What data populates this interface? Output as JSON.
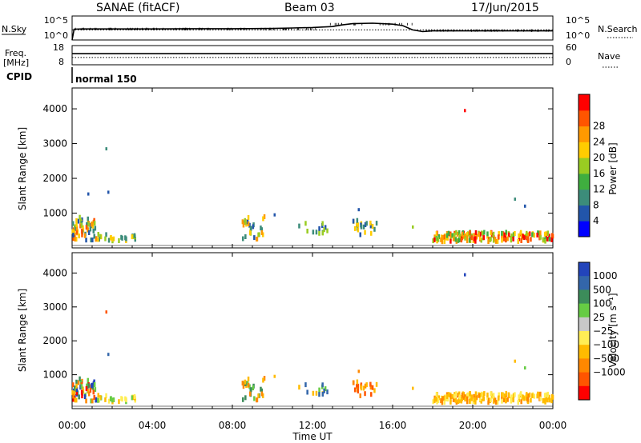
{
  "header": {
    "station": "SANAE (fitACF)",
    "beam": "Beam 03",
    "date": "17/Jun/2015"
  },
  "strip_labels": {
    "nsky": "N.Sky",
    "nsearch": "N.Search",
    "freq_line1": "Freq.",
    "freq_line2": "[MHz]",
    "nave": "Nave",
    "cpid": "CPID",
    "cpid_value": "normal 150",
    "noise_left_ticks": [
      "10^5",
      "10^0"
    ],
    "noise_right_ticks": [
      "10^5",
      "10^0"
    ],
    "freq_left_ticks": [
      "18",
      "8"
    ],
    "freq_right_ticks": [
      "60",
      "0"
    ]
  },
  "chart_data": [
    {
      "type": "line",
      "name": "noise",
      "series": [
        {
          "name": "N.Sky",
          "style": "solid",
          "x": [
            0.0,
            0.1,
            0.5,
            2,
            4,
            6,
            8,
            10,
            11,
            12,
            13,
            13.5,
            14,
            15,
            16,
            16.5,
            17,
            17.5,
            18,
            20,
            22,
            24
          ],
          "y": [
            0.0,
            0.45,
            0.46,
            0.46,
            0.46,
            0.47,
            0.47,
            0.48,
            0.5,
            0.52,
            0.56,
            0.63,
            0.68,
            0.7,
            0.66,
            0.6,
            0.42,
            0.35,
            0.38,
            0.38,
            0.38,
            0.38
          ]
        },
        {
          "name": "N.Search",
          "style": "dotted",
          "x": [
            0.0,
            24
          ],
          "y": [
            0.42,
            0.42
          ]
        }
      ]
    },
    {
      "type": "line",
      "name": "frequency",
      "series": [
        {
          "name": "Freq.",
          "style": "solid",
          "x": [
            0,
            24
          ],
          "y": [
            0.58,
            0.58
          ]
        },
        {
          "name": "Nave",
          "style": "dotted",
          "x": [
            0,
            24
          ],
          "y": [
            0.38,
            0.38
          ]
        }
      ]
    },
    {
      "type": "scatter",
      "name": "power",
      "ylabel": "Slant Range [km]",
      "xlim": [
        0,
        24
      ],
      "ylim": [
        0,
        4600
      ],
      "colorbar": {
        "label": "Power [dB]",
        "ticks": [
          "4",
          "8",
          "12",
          "16",
          "20",
          "24",
          "28"
        ],
        "colors": [
          "#0000ff",
          "#2255aa",
          "#3c8c7a",
          "#3fae3f",
          "#99cc22",
          "#ffcc00",
          "#ff9900",
          "#ff5500",
          "#ff0000"
        ]
      },
      "clusters": [
        {
          "x0": 0.0,
          "x1": 1.2,
          "y0": 200,
          "y1": 900,
          "n": 60,
          "colors": [
            "#2255aa",
            "#3c8c7a",
            "#99cc22",
            "#ffcc00",
            "#ff9900",
            "#ff5500"
          ]
        },
        {
          "x0": 1.2,
          "x1": 3.2,
          "y0": 200,
          "y1": 400,
          "n": 25,
          "colors": [
            "#99cc22",
            "#ffcc00",
            "#3c8c7a"
          ]
        },
        {
          "x0": 8.5,
          "x1": 9.6,
          "y0": 250,
          "y1": 900,
          "n": 30,
          "colors": [
            "#2255aa",
            "#3c8c7a",
            "#99cc22",
            "#ffcc00",
            "#ff9900"
          ]
        },
        {
          "x0": 11.2,
          "x1": 12.8,
          "y0": 400,
          "y1": 800,
          "n": 14,
          "colors": [
            "#2255aa",
            "#3c8c7a",
            "#99cc22"
          ]
        },
        {
          "x0": 14.0,
          "x1": 15.2,
          "y0": 350,
          "y1": 800,
          "n": 22,
          "colors": [
            "#2255aa",
            "#3c8c7a",
            "#ffcc00"
          ]
        },
        {
          "x0": 18.0,
          "x1": 24.0,
          "y0": 180,
          "y1": 450,
          "n": 180,
          "colors": [
            "#3fae3f",
            "#99cc22",
            "#ffcc00",
            "#ff9900",
            "#ff5500",
            "#ff0000"
          ]
        }
      ],
      "isolated": [
        {
          "x": 19.6,
          "y": 3950,
          "c": "#ff0000"
        },
        {
          "x": 1.7,
          "y": 2850,
          "c": "#3c8c7a"
        },
        {
          "x": 1.8,
          "y": 1600,
          "c": "#2255aa"
        },
        {
          "x": 0.8,
          "y": 1550,
          "c": "#2255aa"
        },
        {
          "x": 22.1,
          "y": 1400,
          "c": "#3c8c7a"
        },
        {
          "x": 22.6,
          "y": 1200,
          "c": "#2255aa"
        },
        {
          "x": 14.3,
          "y": 1100,
          "c": "#2255aa"
        },
        {
          "x": 10.1,
          "y": 950,
          "c": "#2255aa"
        },
        {
          "x": 17.0,
          "y": 600,
          "c": "#99cc22"
        }
      ]
    },
    {
      "type": "scatter",
      "name": "velocity",
      "ylabel": "Slant Range [km]",
      "xlabel": "Time UT",
      "xlim": [
        0,
        24
      ],
      "ylim": [
        0,
        4600
      ],
      "xticks": [
        "00:00",
        "04:00",
        "08:00",
        "12:00",
        "16:00",
        "20:00",
        "00:00"
      ],
      "colorbar": {
        "label": "Velocity [m s⁻¹]",
        "ticks": [
          "1000",
          "500",
          "100",
          "25",
          "−25",
          "−100",
          "−500",
          "−1000"
        ],
        "colors": [
          "#2244bb",
          "#3366aa",
          "#3c8c5a",
          "#66cc44",
          "#c8c8c8",
          "#ffee55",
          "#ffbb00",
          "#ff8800",
          "#ff5500",
          "#ff0000"
        ]
      },
      "clusters": [
        {
          "x0": 0.0,
          "x1": 1.2,
          "y0": 200,
          "y1": 900,
          "n": 60,
          "colors": [
            "#ff8800",
            "#ff5500",
            "#66cc44",
            "#3c8c5a",
            "#ffbb00",
            "#2244bb",
            "#ff0000"
          ]
        },
        {
          "x0": 1.2,
          "x1": 3.2,
          "y0": 200,
          "y1": 400,
          "n": 25,
          "colors": [
            "#ffbb00",
            "#66cc44",
            "#ffee55"
          ]
        },
        {
          "x0": 8.5,
          "x1": 9.6,
          "y0": 250,
          "y1": 900,
          "n": 30,
          "colors": [
            "#66cc44",
            "#3c8c5a",
            "#ffbb00",
            "#ff8800"
          ]
        },
        {
          "x0": 11.2,
          "x1": 12.8,
          "y0": 400,
          "y1": 800,
          "n": 14,
          "colors": [
            "#66cc44",
            "#ffbb00",
            "#3366aa"
          ]
        },
        {
          "x0": 14.0,
          "x1": 15.2,
          "y0": 350,
          "y1": 800,
          "n": 22,
          "colors": [
            "#ff8800",
            "#ffbb00",
            "#ff5500"
          ]
        },
        {
          "x0": 18.0,
          "x1": 24.0,
          "y0": 180,
          "y1": 450,
          "n": 180,
          "colors": [
            "#ffbb00",
            "#ffee55",
            "#ff8800",
            "#ffbb00"
          ]
        }
      ],
      "isolated": [
        {
          "x": 19.6,
          "y": 3950,
          "c": "#2244bb"
        },
        {
          "x": 1.7,
          "y": 2850,
          "c": "#ff5500"
        },
        {
          "x": 1.8,
          "y": 1600,
          "c": "#3366aa"
        },
        {
          "x": 22.1,
          "y": 1400,
          "c": "#ffbb00"
        },
        {
          "x": 22.6,
          "y": 1200,
          "c": "#66cc44"
        },
        {
          "x": 14.3,
          "y": 1100,
          "c": "#ff8800"
        },
        {
          "x": 10.1,
          "y": 950,
          "c": "#ffbb00"
        },
        {
          "x": 17.0,
          "y": 600,
          "c": "#ffbb00"
        }
      ]
    }
  ],
  "y_ticks": [
    "1000",
    "2000",
    "3000",
    "4000"
  ]
}
